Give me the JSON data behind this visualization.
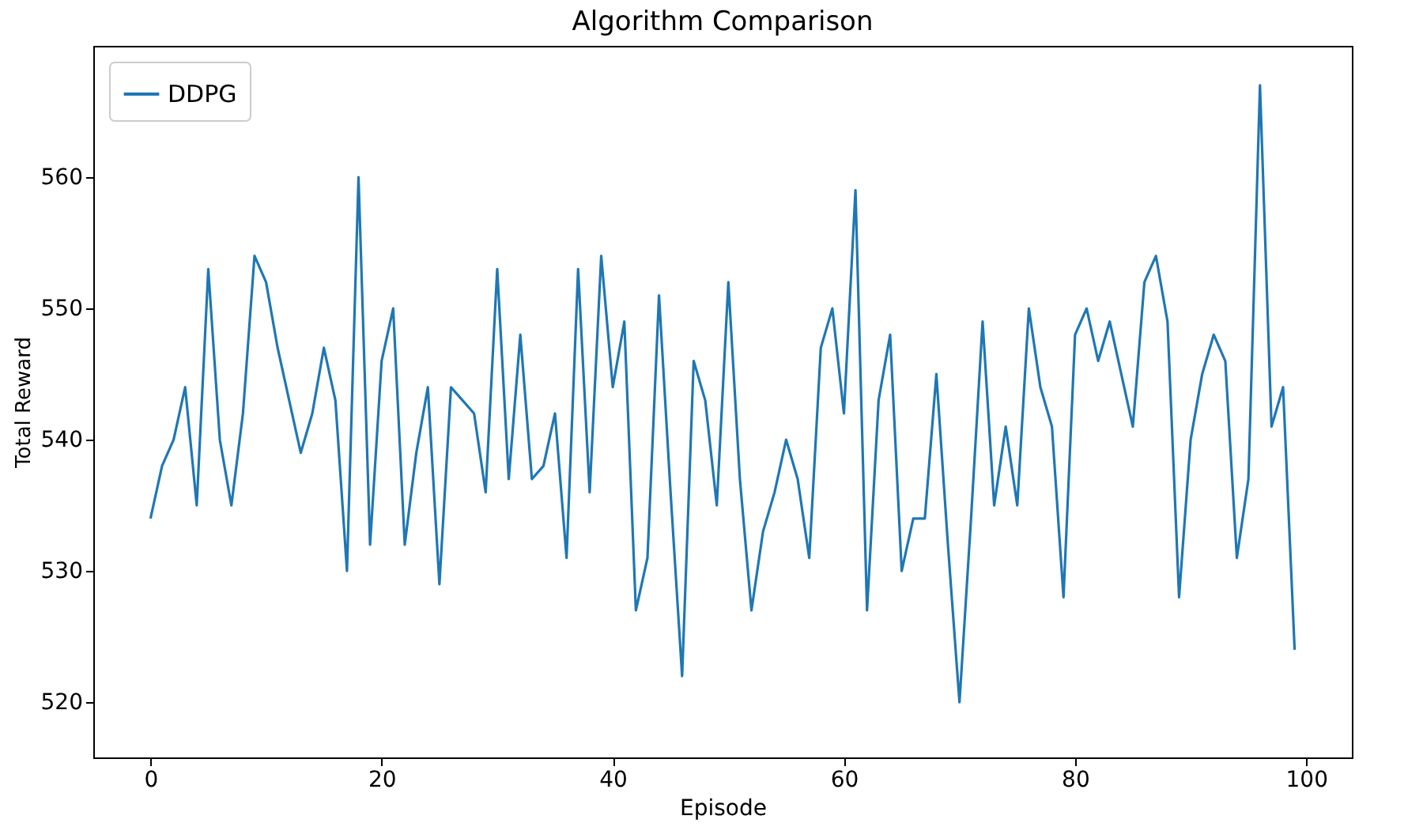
{
  "chart_data": {
    "type": "line",
    "title": "Algorithm Comparison",
    "xlabel": "Episode",
    "ylabel": "Total Reward",
    "x": [
      0,
      1,
      2,
      3,
      4,
      5,
      6,
      7,
      8,
      9,
      10,
      11,
      12,
      13,
      14,
      15,
      16,
      17,
      18,
      19,
      20,
      21,
      22,
      23,
      24,
      25,
      26,
      27,
      28,
      29,
      30,
      31,
      32,
      33,
      34,
      35,
      36,
      37,
      38,
      39,
      40,
      41,
      42,
      43,
      44,
      45,
      46,
      47,
      48,
      49,
      50,
      51,
      52,
      53,
      54,
      55,
      56,
      57,
      58,
      59,
      60,
      61,
      62,
      63,
      64,
      65,
      66,
      67,
      68,
      69,
      70,
      71,
      72,
      73,
      74,
      75,
      76,
      77,
      78,
      79,
      80,
      81,
      82,
      83,
      84,
      85,
      86,
      87,
      88,
      89,
      90,
      91,
      92,
      93,
      94,
      95,
      96,
      97,
      98,
      99
    ],
    "series": [
      {
        "name": "DDPG",
        "color": "#1f77b4",
        "values": [
          534,
          538,
          540,
          544,
          535,
          553,
          540,
          535,
          542,
          554,
          552,
          547,
          543,
          539,
          542,
          547,
          543,
          530,
          560,
          532,
          546,
          550,
          532,
          539,
          544,
          529,
          544,
          543,
          542,
          536,
          553,
          537,
          548,
          537,
          538,
          542,
          531,
          553,
          536,
          554,
          544,
          549,
          527,
          531,
          551,
          536,
          522,
          546,
          543,
          535,
          552,
          537,
          527,
          533,
          536,
          540,
          537,
          531,
          547,
          550,
          542,
          559,
          527,
          543,
          548,
          530,
          534,
          534,
          545,
          532,
          520,
          534,
          549,
          535,
          541,
          535,
          550,
          544,
          541,
          528,
          548,
          550,
          546,
          549,
          545,
          541,
          552,
          554,
          549,
          528,
          540,
          545,
          548,
          546,
          531,
          537,
          567,
          541,
          544,
          524
        ]
      }
    ],
    "xlim": [
      -4.95,
      103.95
    ],
    "ylim": [
      515.8,
      570
    ],
    "xticks": [
      0,
      20,
      40,
      60,
      80,
      100
    ],
    "yticks": [
      520,
      530,
      540,
      550,
      560
    ],
    "grid": false,
    "legend": "top left",
    "marker": "none",
    "line_style": "solid"
  }
}
